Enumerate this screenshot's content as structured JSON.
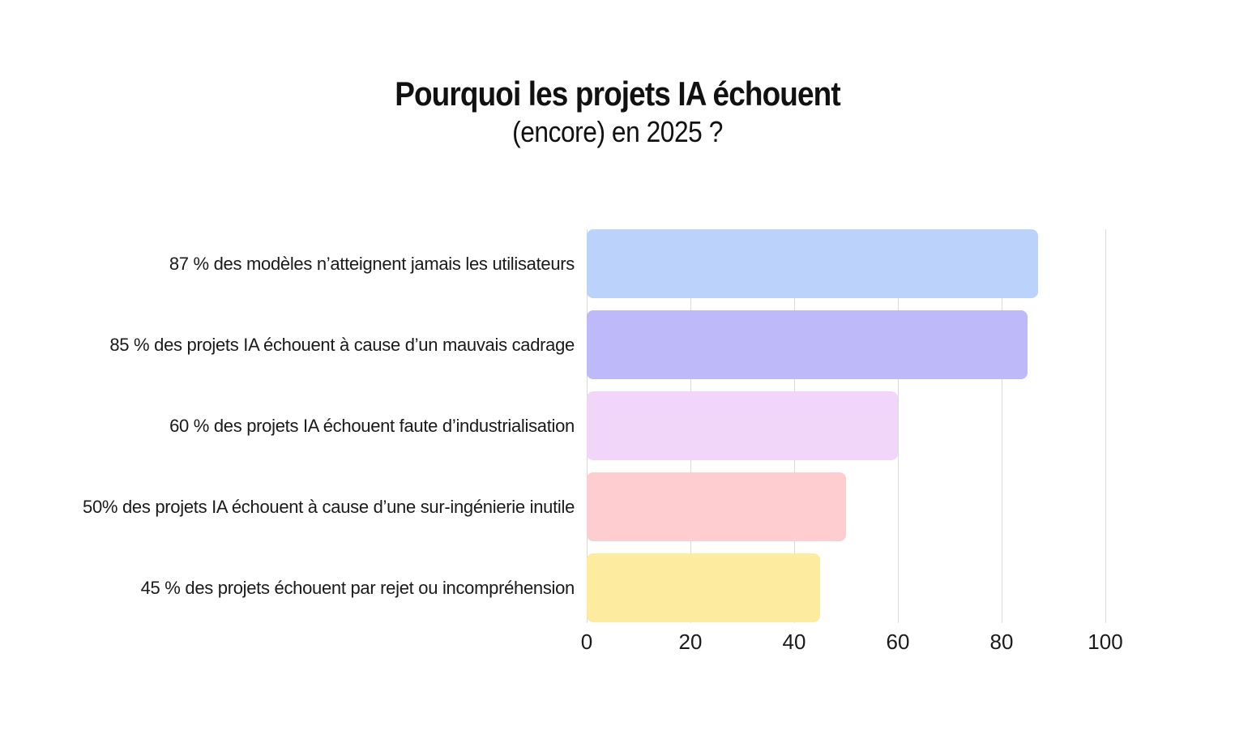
{
  "title": {
    "line1": "Pourquoi les projets IA échouent",
    "line2": "(encore) en 2025 ?"
  },
  "chart_data": {
    "type": "bar",
    "orientation": "horizontal",
    "title": "Pourquoi les projets IA échouent (encore) en 2025 ?",
    "categories": [
      "87 % des modèles n’atteignent jamais les utilisateurs",
      "85 % des projets IA échouent à cause d’un mauvais cadrage",
      "60 % des projets IA échouent faute d’industrialisation",
      "50% des projets IA échouent à cause d’une sur-ingénierie inutile",
      "45 % des projets échouent par rejet ou incompréhension"
    ],
    "values": [
      87,
      85,
      60,
      50,
      45
    ],
    "colors": [
      "#bbd3fa",
      "#beb9f8",
      "#f1d6fa",
      "#fecdd0",
      "#fdeb9f"
    ],
    "xlabel": "",
    "ylabel": "",
    "xlim": [
      0,
      100
    ],
    "x_ticks": [
      0,
      20,
      40,
      60,
      80,
      100
    ],
    "grid": "vertical-gridlines",
    "gridline_color": "#d9d9d9",
    "background_color": "#ffffff",
    "text_color": "#1a1a1a",
    "legend": "none"
  }
}
